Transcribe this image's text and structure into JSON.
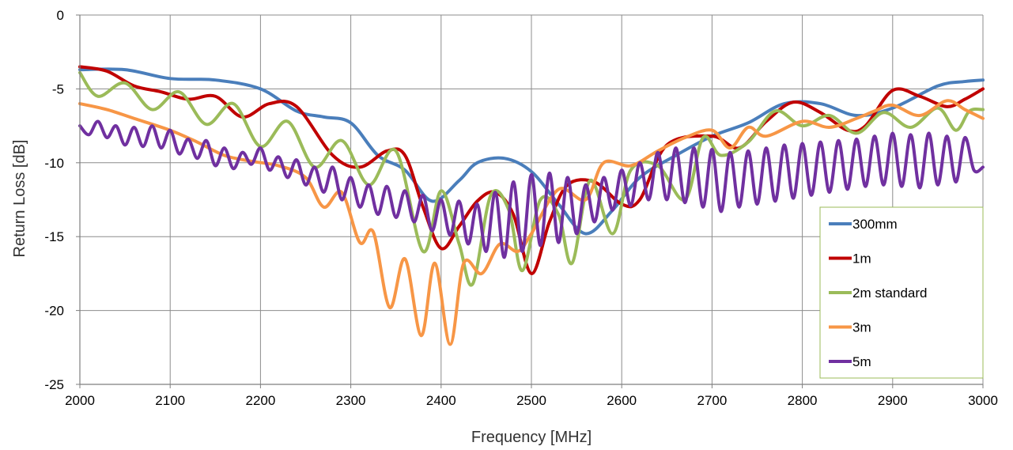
{
  "chart_data": {
    "type": "line",
    "title": "",
    "xlabel": "Frequency [MHz]",
    "ylabel": "Return Loss [dB]",
    "xlim": [
      2000,
      3000
    ],
    "ylim": [
      -25,
      0
    ],
    "grid": true,
    "legend_position": "bottom-right",
    "x_ticks": [
      "2000",
      "2100",
      "2200",
      "2300",
      "2400",
      "2500",
      "2600",
      "2700",
      "2800",
      "2900",
      "3000"
    ],
    "y_ticks": [
      "0",
      "-5",
      "-10",
      "-15",
      "-20",
      "-25"
    ],
    "series": [
      {
        "name": "300mm",
        "color": "#4a7ebb",
        "points": [
          [
            2000,
            -3.7
          ],
          [
            2050,
            -3.7
          ],
          [
            2100,
            -4.3
          ],
          [
            2150,
            -4.4
          ],
          [
            2200,
            -5.0
          ],
          [
            2240,
            -6.5
          ],
          [
            2270,
            -6.9
          ],
          [
            2300,
            -7.3
          ],
          [
            2330,
            -9.5
          ],
          [
            2360,
            -10.5
          ],
          [
            2390,
            -12.6
          ],
          [
            2420,
            -11.2
          ],
          [
            2440,
            -10.0
          ],
          [
            2470,
            -9.7
          ],
          [
            2500,
            -10.6
          ],
          [
            2530,
            -12.8
          ],
          [
            2560,
            -14.8
          ],
          [
            2590,
            -13.2
          ],
          [
            2620,
            -11.0
          ],
          [
            2660,
            -9.5
          ],
          [
            2700,
            -8.2
          ],
          [
            2740,
            -7.3
          ],
          [
            2780,
            -6.0
          ],
          [
            2820,
            -6.0
          ],
          [
            2860,
            -6.8
          ],
          [
            2900,
            -6.3
          ],
          [
            2950,
            -4.8
          ],
          [
            2980,
            -4.5
          ],
          [
            3000,
            -4.4
          ]
        ]
      },
      {
        "name": "1m",
        "color": "#c00000",
        "points": [
          [
            2000,
            -3.5
          ],
          [
            2030,
            -3.8
          ],
          [
            2060,
            -4.8
          ],
          [
            2090,
            -5.2
          ],
          [
            2120,
            -5.7
          ],
          [
            2150,
            -5.5
          ],
          [
            2180,
            -6.9
          ],
          [
            2210,
            -6.0
          ],
          [
            2240,
            -6.2
          ],
          [
            2280,
            -9.5
          ],
          [
            2310,
            -10.3
          ],
          [
            2340,
            -9.2
          ],
          [
            2360,
            -9.5
          ],
          [
            2380,
            -13.0
          ],
          [
            2400,
            -15.8
          ],
          [
            2420,
            -14.3
          ],
          [
            2440,
            -12.6
          ],
          [
            2460,
            -12.0
          ],
          [
            2480,
            -13.5
          ],
          [
            2500,
            -17.5
          ],
          [
            2520,
            -14.0
          ],
          [
            2540,
            -11.5
          ],
          [
            2570,
            -11.3
          ],
          [
            2600,
            -12.8
          ],
          [
            2620,
            -12.5
          ],
          [
            2650,
            -8.8
          ],
          [
            2700,
            -8.2
          ],
          [
            2730,
            -9.0
          ],
          [
            2760,
            -7.2
          ],
          [
            2790,
            -5.9
          ],
          [
            2820,
            -6.6
          ],
          [
            2850,
            -7.8
          ],
          [
            2870,
            -7.5
          ],
          [
            2900,
            -5.1
          ],
          [
            2930,
            -5.5
          ],
          [
            2960,
            -6.2
          ],
          [
            2980,
            -5.7
          ],
          [
            3000,
            -5.0
          ]
        ]
      },
      {
        "name": "2m standard",
        "color": "#9bbb59",
        "points": [
          [
            2000,
            -3.9
          ],
          [
            2020,
            -5.5
          ],
          [
            2050,
            -4.6
          ],
          [
            2080,
            -6.4
          ],
          [
            2110,
            -5.2
          ],
          [
            2140,
            -7.4
          ],
          [
            2170,
            -6.0
          ],
          [
            2200,
            -8.9
          ],
          [
            2230,
            -7.2
          ],
          [
            2260,
            -10.3
          ],
          [
            2290,
            -8.5
          ],
          [
            2320,
            -11.5
          ],
          [
            2350,
            -9.2
          ],
          [
            2380,
            -16.0
          ],
          [
            2400,
            -11.9
          ],
          [
            2420,
            -15.5
          ],
          [
            2435,
            -18.2
          ],
          [
            2455,
            -12.2
          ],
          [
            2475,
            -13.2
          ],
          [
            2490,
            -17.3
          ],
          [
            2510,
            -12.5
          ],
          [
            2530,
            -13.5
          ],
          [
            2545,
            -16.8
          ],
          [
            2565,
            -11.2
          ],
          [
            2590,
            -14.8
          ],
          [
            2610,
            -10.5
          ],
          [
            2640,
            -10.2
          ],
          [
            2670,
            -12.5
          ],
          [
            2690,
            -8.3
          ],
          [
            2710,
            -9.5
          ],
          [
            2740,
            -8.6
          ],
          [
            2770,
            -6.5
          ],
          [
            2800,
            -7.5
          ],
          [
            2830,
            -6.8
          ],
          [
            2860,
            -8.0
          ],
          [
            2890,
            -6.6
          ],
          [
            2920,
            -7.6
          ],
          [
            2950,
            -6.3
          ],
          [
            2970,
            -7.8
          ],
          [
            2985,
            -6.5
          ],
          [
            3000,
            -6.4
          ]
        ]
      },
      {
        "name": "3m",
        "color": "#f79646",
        "points": [
          [
            2000,
            -6.0
          ],
          [
            2030,
            -6.4
          ],
          [
            2060,
            -7.0
          ],
          [
            2100,
            -7.8
          ],
          [
            2130,
            -8.6
          ],
          [
            2160,
            -9.5
          ],
          [
            2190,
            -9.9
          ],
          [
            2220,
            -10.2
          ],
          [
            2250,
            -11.0
          ],
          [
            2270,
            -13.0
          ],
          [
            2290,
            -12.0
          ],
          [
            2310,
            -15.4
          ],
          [
            2325,
            -14.7
          ],
          [
            2343,
            -19.8
          ],
          [
            2360,
            -16.5
          ],
          [
            2378,
            -21.7
          ],
          [
            2393,
            -16.8
          ],
          [
            2410,
            -22.3
          ],
          [
            2425,
            -16.8
          ],
          [
            2445,
            -17.5
          ],
          [
            2465,
            -15.5
          ],
          [
            2485,
            -16.0
          ],
          [
            2500,
            -14.8
          ],
          [
            2530,
            -11.8
          ],
          [
            2560,
            -12.5
          ],
          [
            2580,
            -10.0
          ],
          [
            2610,
            -10.2
          ],
          [
            2640,
            -9.2
          ],
          [
            2670,
            -8.3
          ],
          [
            2700,
            -7.8
          ],
          [
            2720,
            -9.0
          ],
          [
            2740,
            -7.6
          ],
          [
            2760,
            -8.2
          ],
          [
            2800,
            -7.2
          ],
          [
            2830,
            -7.6
          ],
          [
            2860,
            -7.0
          ],
          [
            2880,
            -6.5
          ],
          [
            2900,
            -6.1
          ],
          [
            2930,
            -6.8
          ],
          [
            2960,
            -5.8
          ],
          [
            2980,
            -6.4
          ],
          [
            3000,
            -7.0
          ]
        ]
      },
      {
        "name": "5m",
        "color": "#7030a0",
        "points": [
          [
            2000,
            -7.5
          ],
          [
            2010,
            -8.1
          ],
          [
            2020,
            -7.2
          ],
          [
            2030,
            -8.3
          ],
          [
            2040,
            -7.5
          ],
          [
            2050,
            -8.8
          ],
          [
            2060,
            -7.6
          ],
          [
            2070,
            -8.9
          ],
          [
            2080,
            -7.5
          ],
          [
            2090,
            -9.0
          ],
          [
            2100,
            -7.8
          ],
          [
            2110,
            -9.4
          ],
          [
            2120,
            -8.4
          ],
          [
            2130,
            -9.7
          ],
          [
            2140,
            -8.5
          ],
          [
            2150,
            -10.2
          ],
          [
            2160,
            -9.0
          ],
          [
            2170,
            -10.4
          ],
          [
            2180,
            -9.3
          ],
          [
            2190,
            -10.1
          ],
          [
            2200,
            -9.0
          ],
          [
            2210,
            -10.5
          ],
          [
            2220,
            -9.6
          ],
          [
            2230,
            -11.0
          ],
          [
            2240,
            -9.8
          ],
          [
            2250,
            -11.5
          ],
          [
            2260,
            -10.3
          ],
          [
            2270,
            -12.0
          ],
          [
            2280,
            -10.3
          ],
          [
            2290,
            -12.5
          ],
          [
            2300,
            -11.0
          ],
          [
            2310,
            -13.0
          ],
          [
            2320,
            -11.5
          ],
          [
            2330,
            -13.5
          ],
          [
            2340,
            -11.6
          ],
          [
            2350,
            -13.7
          ],
          [
            2360,
            -11.9
          ],
          [
            2370,
            -14.0
          ],
          [
            2380,
            -12.2
          ],
          [
            2390,
            -14.6
          ],
          [
            2400,
            -12.5
          ],
          [
            2410,
            -14.9
          ],
          [
            2420,
            -12.6
          ],
          [
            2430,
            -15.5
          ],
          [
            2440,
            -12.8
          ],
          [
            2450,
            -16.0
          ],
          [
            2460,
            -12.0
          ],
          [
            2470,
            -16.4
          ],
          [
            2480,
            -11.3
          ],
          [
            2490,
            -16.0
          ],
          [
            2500,
            -10.8
          ],
          [
            2510,
            -15.6
          ],
          [
            2520,
            -10.7
          ],
          [
            2530,
            -15.4
          ],
          [
            2540,
            -11.0
          ],
          [
            2550,
            -14.8
          ],
          [
            2560,
            -11.5
          ],
          [
            2570,
            -14.0
          ],
          [
            2580,
            -11.0
          ],
          [
            2590,
            -13.2
          ],
          [
            2600,
            -10.5
          ],
          [
            2610,
            -12.9
          ],
          [
            2620,
            -10.0
          ],
          [
            2630,
            -12.5
          ],
          [
            2640,
            -9.3
          ],
          [
            2650,
            -12.5
          ],
          [
            2660,
            -9.0
          ],
          [
            2670,
            -12.7
          ],
          [
            2680,
            -9.0
          ],
          [
            2690,
            -13.0
          ],
          [
            2700,
            -9.1
          ],
          [
            2710,
            -13.3
          ],
          [
            2720,
            -9.3
          ],
          [
            2730,
            -13.0
          ],
          [
            2740,
            -9.2
          ],
          [
            2750,
            -12.8
          ],
          [
            2760,
            -9.0
          ],
          [
            2770,
            -12.6
          ],
          [
            2780,
            -8.8
          ],
          [
            2790,
            -12.4
          ],
          [
            2800,
            -8.7
          ],
          [
            2810,
            -12.2
          ],
          [
            2820,
            -8.6
          ],
          [
            2830,
            -12.0
          ],
          [
            2840,
            -8.5
          ],
          [
            2850,
            -11.8
          ],
          [
            2860,
            -8.4
          ],
          [
            2870,
            -11.6
          ],
          [
            2880,
            -8.2
          ],
          [
            2890,
            -11.5
          ],
          [
            2900,
            -8.0
          ],
          [
            2910,
            -11.6
          ],
          [
            2920,
            -8.1
          ],
          [
            2930,
            -11.7
          ],
          [
            2940,
            -8.0
          ],
          [
            2950,
            -11.5
          ],
          [
            2960,
            -8.2
          ],
          [
            2970,
            -11.3
          ],
          [
            2980,
            -8.3
          ],
          [
            2990,
            -10.5
          ],
          [
            3000,
            -10.3
          ]
        ]
      }
    ]
  }
}
